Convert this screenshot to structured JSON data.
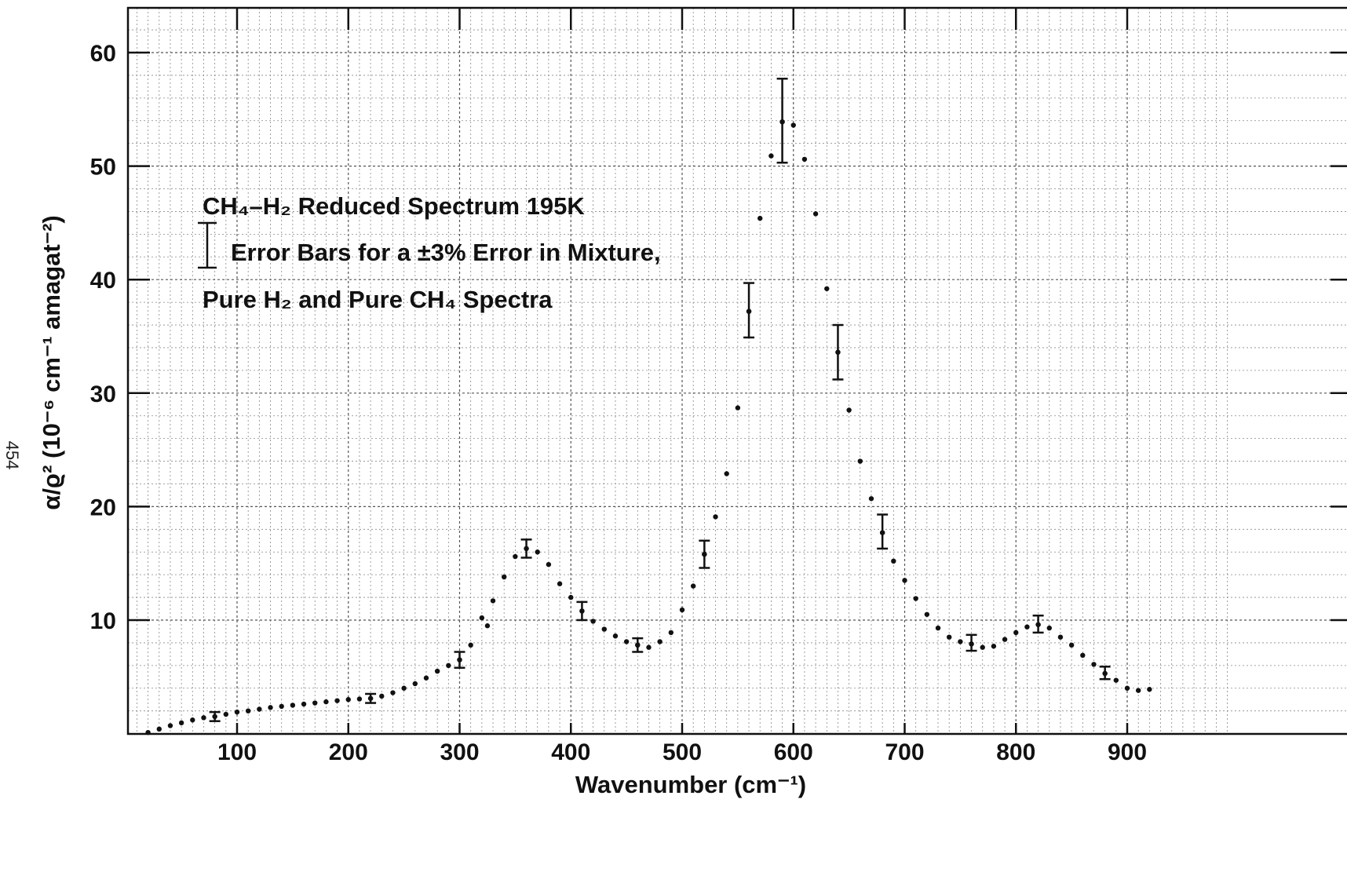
{
  "page_number": "454",
  "chart_data": {
    "type": "scatter",
    "title": "",
    "xlabel": "Wavenumber (cm⁻¹)",
    "ylabel": "α/ϱ² (10⁻⁶ cm⁻¹ amagat⁻²)",
    "xlim": [
      0,
      1000
    ],
    "ylim": [
      0,
      63
    ],
    "xticks": [
      100,
      200,
      300,
      400,
      500,
      600,
      700,
      800,
      900
    ],
    "yticks": [
      10,
      20,
      30,
      40,
      50,
      60
    ],
    "grid": true,
    "legend": {
      "placement": "upper-left",
      "line1": "CH₄–H₂ Reduced Spectrum 195K",
      "line2": "Error Bars for a ±3% Error in Mixture,",
      "line3": "Pure H₂ and Pure CH₄ Spectra"
    },
    "points": [
      [
        20,
        0.1
      ],
      [
        30,
        0.4
      ],
      [
        40,
        0.7
      ],
      [
        50,
        0.95
      ],
      [
        60,
        1.2
      ],
      [
        70,
        1.4
      ],
      [
        80,
        1.5
      ],
      [
        90,
        1.7
      ],
      [
        100,
        1.9
      ],
      [
        110,
        2.0
      ],
      [
        120,
        2.15
      ],
      [
        130,
        2.3
      ],
      [
        140,
        2.4
      ],
      [
        150,
        2.5
      ],
      [
        160,
        2.6
      ],
      [
        170,
        2.7
      ],
      [
        180,
        2.8
      ],
      [
        190,
        2.9
      ],
      [
        200,
        3.0
      ],
      [
        210,
        3.05
      ],
      [
        220,
        3.1
      ],
      [
        230,
        3.3
      ],
      [
        240,
        3.6
      ],
      [
        250,
        4.0
      ],
      [
        260,
        4.4
      ],
      [
        270,
        4.9
      ],
      [
        280,
        5.5
      ],
      [
        290,
        6.0
      ],
      [
        300,
        6.5
      ],
      [
        310,
        7.8
      ],
      [
        320,
        10.2
      ],
      [
        325,
        9.5
      ],
      [
        330,
        11.7
      ],
      [
        340,
        13.8
      ],
      [
        350,
        15.6
      ],
      [
        360,
        16.3
      ],
      [
        370,
        16.0
      ],
      [
        380,
        14.9
      ],
      [
        390,
        13.2
      ],
      [
        400,
        12.0
      ],
      [
        410,
        10.8
      ],
      [
        420,
        9.9
      ],
      [
        430,
        9.2
      ],
      [
        440,
        8.6
      ],
      [
        450,
        8.1
      ],
      [
        460,
        7.8
      ],
      [
        470,
        7.6
      ],
      [
        480,
        8.1
      ],
      [
        490,
        8.9
      ],
      [
        500,
        10.9
      ],
      [
        510,
        13.0
      ],
      [
        520,
        15.8
      ],
      [
        530,
        19.1
      ],
      [
        540,
        22.9
      ],
      [
        550,
        28.7
      ],
      [
        560,
        37.2
      ],
      [
        570,
        45.4
      ],
      [
        580,
        50.9
      ],
      [
        590,
        53.9
      ],
      [
        600,
        53.6
      ],
      [
        610,
        50.6
      ],
      [
        620,
        45.8
      ],
      [
        630,
        39.2
      ],
      [
        640,
        33.6
      ],
      [
        650,
        28.5
      ],
      [
        660,
        24.0
      ],
      [
        670,
        20.7
      ],
      [
        680,
        17.7
      ],
      [
        690,
        15.2
      ],
      [
        700,
        13.5
      ],
      [
        710,
        11.9
      ],
      [
        720,
        10.5
      ],
      [
        730,
        9.3
      ],
      [
        740,
        8.5
      ],
      [
        750,
        8.1
      ],
      [
        760,
        7.9
      ],
      [
        770,
        7.6
      ],
      [
        780,
        7.7
      ],
      [
        790,
        8.3
      ],
      [
        800,
        8.9
      ],
      [
        810,
        9.4
      ],
      [
        820,
        9.6
      ],
      [
        830,
        9.3
      ],
      [
        840,
        8.5
      ],
      [
        850,
        7.8
      ],
      [
        860,
        6.9
      ],
      [
        870,
        6.1
      ],
      [
        880,
        5.3
      ],
      [
        890,
        4.7
      ],
      [
        900,
        4.0
      ],
      [
        910,
        3.8
      ],
      [
        920,
        3.9
      ]
    ],
    "error_bars": [
      {
        "x": 80,
        "y": 1.5,
        "low": 1.1,
        "high": 1.9
      },
      {
        "x": 220,
        "y": 3.1,
        "low": 2.7,
        "high": 3.5
      },
      {
        "x": 300,
        "y": 6.5,
        "low": 5.8,
        "high": 7.2
      },
      {
        "x": 360,
        "y": 16.3,
        "low": 15.5,
        "high": 17.1
      },
      {
        "x": 410,
        "y": 10.8,
        "low": 10.0,
        "high": 11.6
      },
      {
        "x": 460,
        "y": 7.8,
        "low": 7.2,
        "high": 8.4
      },
      {
        "x": 520,
        "y": 15.8,
        "low": 14.6,
        "high": 17.0
      },
      {
        "x": 560,
        "y": 37.2,
        "low": 34.9,
        "high": 39.7
      },
      {
        "x": 590,
        "y": 53.9,
        "low": 50.3,
        "high": 57.7
      },
      {
        "x": 640,
        "y": 33.6,
        "low": 31.2,
        "high": 36.0
      },
      {
        "x": 680,
        "y": 17.7,
        "low": 16.3,
        "high": 19.3
      },
      {
        "x": 760,
        "y": 7.9,
        "low": 7.3,
        "high": 8.7
      },
      {
        "x": 820,
        "y": 9.6,
        "low": 8.9,
        "high": 10.4
      },
      {
        "x": 880,
        "y": 5.3,
        "low": 4.8,
        "high": 5.9
      }
    ]
  }
}
